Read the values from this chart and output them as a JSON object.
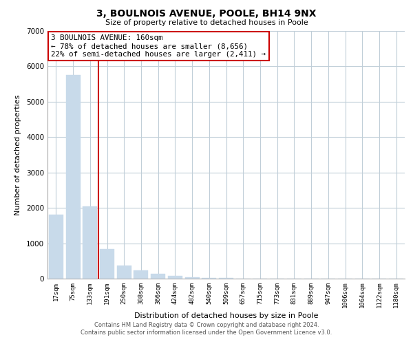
{
  "title": "3, BOULNOIS AVENUE, POOLE, BH14 9NX",
  "subtitle": "Size of property relative to detached houses in Poole",
  "xlabel": "Distribution of detached houses by size in Poole",
  "ylabel": "Number of detached properties",
  "bar_labels": [
    "17sqm",
    "75sqm",
    "133sqm",
    "191sqm",
    "250sqm",
    "308sqm",
    "366sqm",
    "424sqm",
    "482sqm",
    "540sqm",
    "599sqm",
    "657sqm",
    "715sqm",
    "773sqm",
    "831sqm",
    "889sqm",
    "947sqm",
    "1006sqm",
    "1064sqm",
    "1122sqm",
    "1180sqm"
  ],
  "bar_values": [
    1800,
    5750,
    2050,
    830,
    370,
    240,
    130,
    80,
    40,
    20,
    10,
    0,
    0,
    0,
    0,
    0,
    0,
    0,
    0,
    0,
    0
  ],
  "bar_color": "#c8daea",
  "vline_color": "#cc0000",
  "annotation_title": "3 BOULNOIS AVENUE: 160sqm",
  "annotation_line1": "← 78% of detached houses are smaller (8,656)",
  "annotation_line2": "22% of semi-detached houses are larger (2,411) →",
  "annotation_box_color": "#ffffff",
  "annotation_box_edge": "#cc0000",
  "ylim": [
    0,
    7000
  ],
  "yticks": [
    0,
    1000,
    2000,
    3000,
    4000,
    5000,
    6000,
    7000
  ],
  "footer1": "Contains HM Land Registry data © Crown copyright and database right 2024.",
  "footer2": "Contains public sector information licensed under the Open Government Licence v3.0.",
  "background_color": "#ffffff",
  "grid_color": "#c0ced8"
}
